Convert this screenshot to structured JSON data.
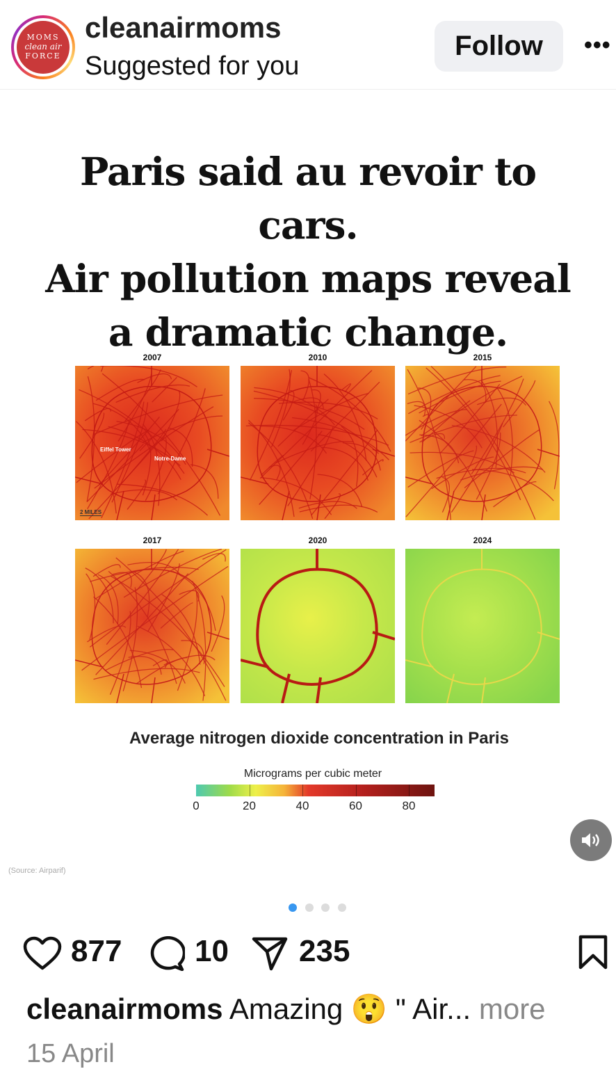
{
  "header": {
    "username": "cleanairmoms",
    "subtitle": "Suggested for you",
    "follow_label": "Follow",
    "more_label": "•••",
    "avatar_text": [
      "MOMS",
      "clean air",
      "FORCE"
    ]
  },
  "post": {
    "headline": [
      "Paris said au revoir to cars.",
      "Air pollution maps reveal",
      "a dramatic change."
    ],
    "maps": [
      {
        "year": "2007",
        "level": "very-high"
      },
      {
        "year": "2010",
        "level": "very-high"
      },
      {
        "year": "2015",
        "level": "high"
      },
      {
        "year": "2017",
        "level": "high"
      },
      {
        "year": "2020",
        "level": "low"
      },
      {
        "year": "2024",
        "level": "very-low"
      }
    ],
    "map_labels": {
      "eiffel": "Eiffel Tower",
      "notre_dame": "Notre-Dame",
      "scale": "2 MILES"
    },
    "chart_title": "Average nitrogen dioxide concentration in Paris",
    "legend_label": "Micrograms per cubic meter",
    "legend_ticks": [
      "0",
      "20",
      "40",
      "60",
      "80"
    ],
    "source": "(Source: Airparif)",
    "carousel": {
      "total": 4,
      "active": 0
    }
  },
  "actions": {
    "likes": "877",
    "comments": "10",
    "shares": "235"
  },
  "caption": {
    "username": "cleanairmoms",
    "text": "Amazing 😲 \" Air...",
    "more": "more"
  },
  "date": "15 April",
  "colors": {
    "accent": "#3897f0",
    "follow_bg": "#eff0f3"
  }
}
